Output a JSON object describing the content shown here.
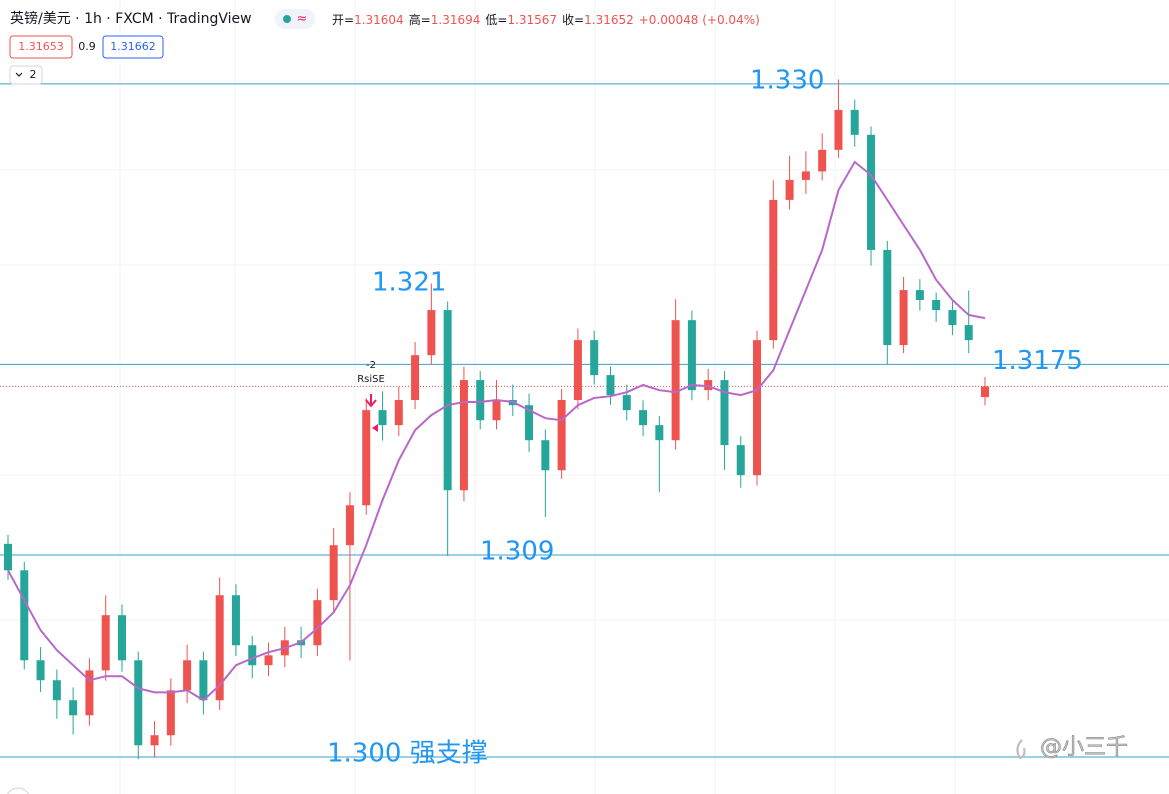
{
  "chart_data": {
    "type": "candlestick",
    "title": "英镑/美元 · 1h · FXCM · TradingView",
    "indicator_icon": "≈",
    "ohlc_legend": [
      {
        "label": "开=",
        "value": "1.31604"
      },
      {
        "label": "高=",
        "value": "1.31694"
      },
      {
        "label": "低=",
        "value": "1.31567"
      },
      {
        "label": "收=",
        "value": "1.31652"
      }
    ],
    "change": "+0.00048 (+0.04%)",
    "sell_price": "1.31653",
    "spread": "0.9",
    "buy_price": "1.31662",
    "collapsed_count": "2",
    "signal": {
      "count": "-2",
      "name": "RsiSE"
    },
    "watermark": "@小三千",
    "up_color": "#ef5350",
    "down_color": "#26a69a",
    "ma_color": "#b868c8",
    "level_color": "#3a9fc0",
    "label_color": "#2196f3",
    "ylim": [
      1.29835,
      1.33374
    ],
    "open": [
      1.3095,
      1.30832,
      1.30431,
      1.30342,
      1.30253,
      1.30186,
      1.30386,
      1.30632,
      1.30431,
      1.30052,
      1.30097,
      1.30297,
      1.30431,
      1.30253,
      1.30721,
      1.30498,
      1.30409,
      1.30453,
      1.3052,
      1.30498,
      1.30699,
      1.30944,
      1.31122,
      1.31546,
      1.31479,
      1.31591,
      1.31791,
      1.31992,
      1.31189,
      1.3168,
      1.31501,
      1.31591,
      1.31568,
      1.31412,
      1.31278,
      1.31591,
      1.31858,
      1.31702,
      1.31613,
      1.31546,
      1.31479,
      1.31412,
      1.31947,
      1.31635,
      1.3168,
      1.3139,
      1.31256,
      1.31858,
      1.32483,
      1.32572,
      1.3261,
      1.32706,
      1.32884,
      1.32773,
      1.3226,
      1.31836,
      1.32081,
      1.32037,
      1.31992,
      1.31925,
      1.31604
    ],
    "high": [
      1.3099,
      1.3087,
      1.3049,
      1.3039,
      1.3031,
      1.3044,
      1.3072,
      1.3068,
      1.3047,
      1.3016,
      1.3035,
      1.305,
      1.3047,
      1.308,
      1.3077,
      1.3054,
      1.3051,
      1.3058,
      1.3058,
      1.3075,
      1.3102,
      1.3118,
      1.316,
      1.3163,
      1.3165,
      1.3185,
      1.3211,
      1.3203,
      1.3174,
      1.3172,
      1.3168,
      1.3166,
      1.3162,
      1.3146,
      1.3164,
      1.3191,
      1.319,
      1.3174,
      1.3166,
      1.3159,
      1.3152,
      1.3204,
      1.3199,
      1.3173,
      1.3172,
      1.3143,
      1.319,
      1.3257,
      1.3268,
      1.327,
      1.3278,
      1.3302,
      1.3293,
      1.3281,
      1.323,
      1.3214,
      1.3213,
      1.3207,
      1.3204,
      1.3208,
      1.31694
    ],
    "low": [
      1.3079,
      1.3039,
      1.3029,
      1.3017,
      1.301,
      1.3014,
      1.3034,
      1.3038,
      1.2999,
      1.3,
      1.3005,
      1.3024,
      1.3019,
      1.3021,
      1.3045,
      1.3035,
      1.3036,
      1.304,
      1.3044,
      1.3045,
      1.3065,
      1.3043,
      1.3108,
      1.3141,
      1.3143,
      1.3155,
      1.3175,
      1.30895,
      1.3114,
      1.3146,
      1.3146,
      1.3152,
      1.3136,
      1.3107,
      1.3124,
      1.3155,
      1.3166,
      1.3157,
      1.315,
      1.3143,
      1.3118,
      1.3137,
      1.3159,
      1.3159,
      1.3128,
      1.312,
      1.3121,
      1.3182,
      1.3244,
      1.3251,
      1.3257,
      1.3267,
      1.3272,
      1.3219,
      1.3175,
      1.318,
      1.3199,
      1.3194,
      1.3188,
      1.318,
      1.31567
    ],
    "close": [
      1.30832,
      1.30431,
      1.30342,
      1.30253,
      1.30186,
      1.30386,
      1.30632,
      1.30431,
      1.30052,
      1.30097,
      1.30297,
      1.30431,
      1.30253,
      1.30721,
      1.30498,
      1.30409,
      1.30453,
      1.3052,
      1.30498,
      1.30699,
      1.30944,
      1.31122,
      1.31546,
      1.31479,
      1.31591,
      1.31791,
      1.31992,
      1.31189,
      1.3168,
      1.31501,
      1.31591,
      1.31568,
      1.31412,
      1.31278,
      1.31591,
      1.31858,
      1.31702,
      1.31613,
      1.31546,
      1.31479,
      1.31412,
      1.31947,
      1.31635,
      1.3168,
      1.3139,
      1.31256,
      1.31858,
      1.32483,
      1.32572,
      1.3261,
      1.32706,
      1.32884,
      1.32773,
      1.3226,
      1.31836,
      1.32081,
      1.32037,
      1.31992,
      1.31925,
      1.31858,
      1.31652
    ],
    "ma": [
      1.30832,
      1.30699,
      1.30565,
      1.30476,
      1.30409,
      1.30342,
      1.3036,
      1.3036,
      1.30306,
      1.30288,
      1.30288,
      1.30297,
      1.30253,
      1.3032,
      1.30409,
      1.3044,
      1.30467,
      1.30485,
      1.30511,
      1.30574,
      1.30645,
      1.30766,
      1.30944,
      1.31145,
      1.31323,
      1.31457,
      1.31524,
      1.31568,
      1.31582,
      1.31582,
      1.31591,
      1.31582,
      1.31546,
      1.3151,
      1.31501,
      1.31568,
      1.316,
      1.31608,
      1.31626,
      1.31658,
      1.31635,
      1.31626,
      1.31658,
      1.31653,
      1.31626,
      1.31613,
      1.31635,
      1.31724,
      1.31903,
      1.32081,
      1.3226,
      1.32527,
      1.32652,
      1.32594,
      1.32483,
      1.32371,
      1.3226,
      1.32126,
      1.32037,
      1.3197,
      1.31956
    ],
    "levels": [
      {
        "value": 1.33,
        "label": "1.330",
        "line": true
      },
      {
        "value": 1.321,
        "label": "1.321",
        "line": false
      },
      {
        "value": 1.3175,
        "label": "1.3175",
        "line": true
      },
      {
        "value": 1.309,
        "label": "1.309",
        "line": true
      },
      {
        "value": 1.3,
        "label": "1.300 强支撑",
        "line": true
      }
    ]
  }
}
